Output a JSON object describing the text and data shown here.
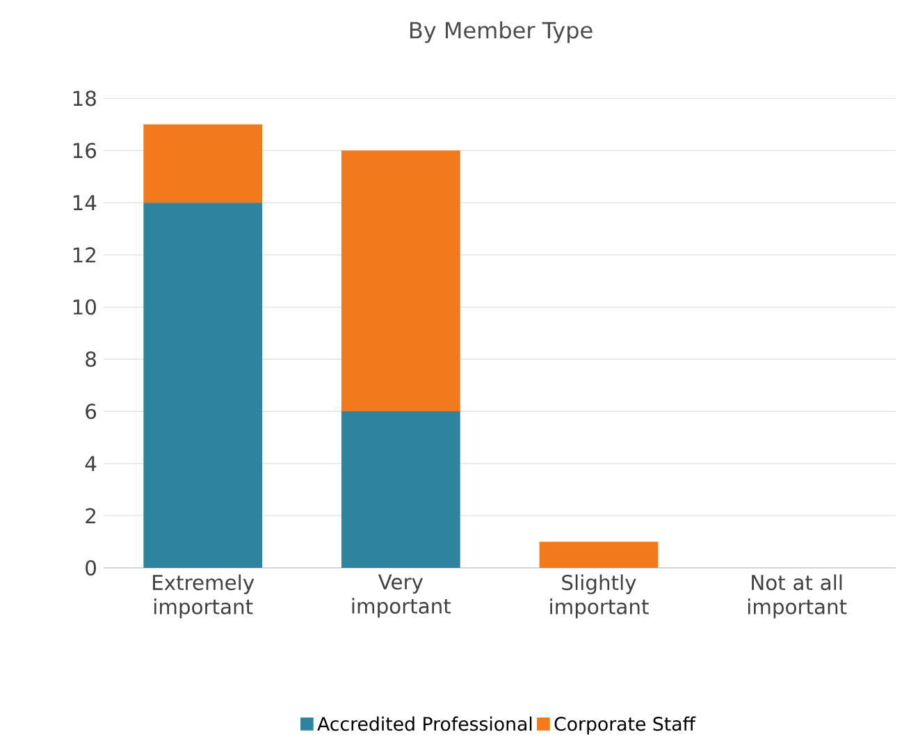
{
  "chart_data": {
    "type": "bar",
    "title": "By Member Type",
    "stacked": true,
    "categories": [
      "Extremely important",
      "Very important",
      "Slightly important",
      "Not at all important"
    ],
    "series": [
      {
        "name": "Accredited Professional",
        "color": "#2e849f",
        "values": [
          14,
          6,
          0,
          0
        ]
      },
      {
        "name": "Corporate Staff",
        "color": "#f07a1c",
        "values": [
          3,
          10,
          1,
          0
        ]
      }
    ],
    "ylim": [
      0,
      18
    ],
    "yticks": [
      0,
      2,
      4,
      6,
      8,
      10,
      12,
      14,
      16,
      18
    ],
    "grid": "y",
    "legend": "bottom"
  }
}
